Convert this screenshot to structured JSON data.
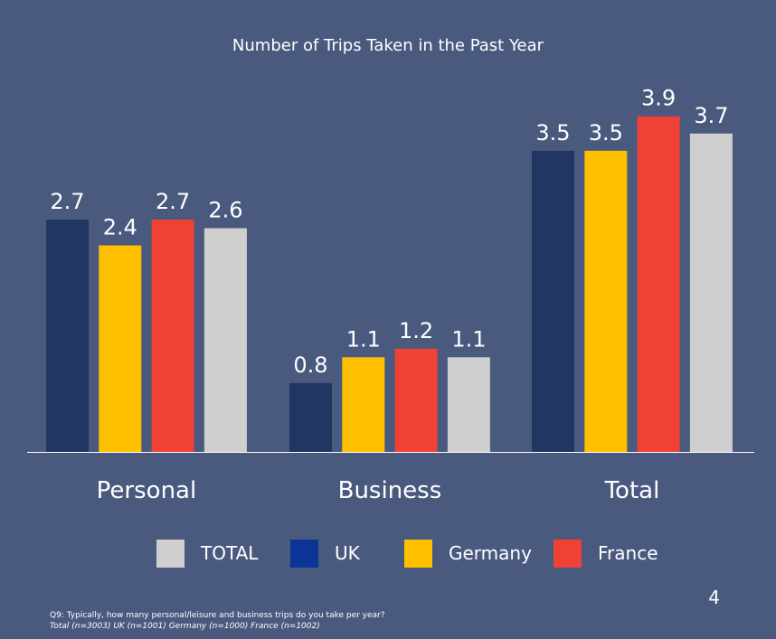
{
  "chart_data": {
    "type": "bar",
    "title": "Number of Trips Taken in the Past Year",
    "categories": [
      "Personal",
      "Business",
      "Total"
    ],
    "series": [
      {
        "name": "UK",
        "values": [
          2.7,
          0.8,
          3.5
        ],
        "color": "#223663"
      },
      {
        "name": "Germany",
        "values": [
          2.4,
          1.1,
          3.5
        ],
        "color": "#ffc000"
      },
      {
        "name": "France",
        "values": [
          2.7,
          1.2,
          3.9
        ],
        "color": "#ef4136"
      },
      {
        "name": "TOTAL",
        "values": [
          2.6,
          1.1,
          3.7
        ],
        "color": "#cfcfcf"
      }
    ],
    "ylim": [
      0,
      4.0
    ],
    "grid": false,
    "legend_position": "bottom"
  },
  "legend": [
    {
      "label": "TOTAL",
      "color": "#cfcfcf"
    },
    {
      "label": "UK",
      "color": "#0a3596"
    },
    {
      "label": "Germany",
      "color": "#ffc000"
    },
    {
      "label": "France",
      "color": "#ef4136"
    }
  ],
  "page_number": "4",
  "footnote": {
    "question": "Q9: Typically, how many personal/leisure and business trips do you take per year?",
    "bases": "Total (n=3003) UK (n=1001) Germany (n=1000) France (n=1002)"
  }
}
